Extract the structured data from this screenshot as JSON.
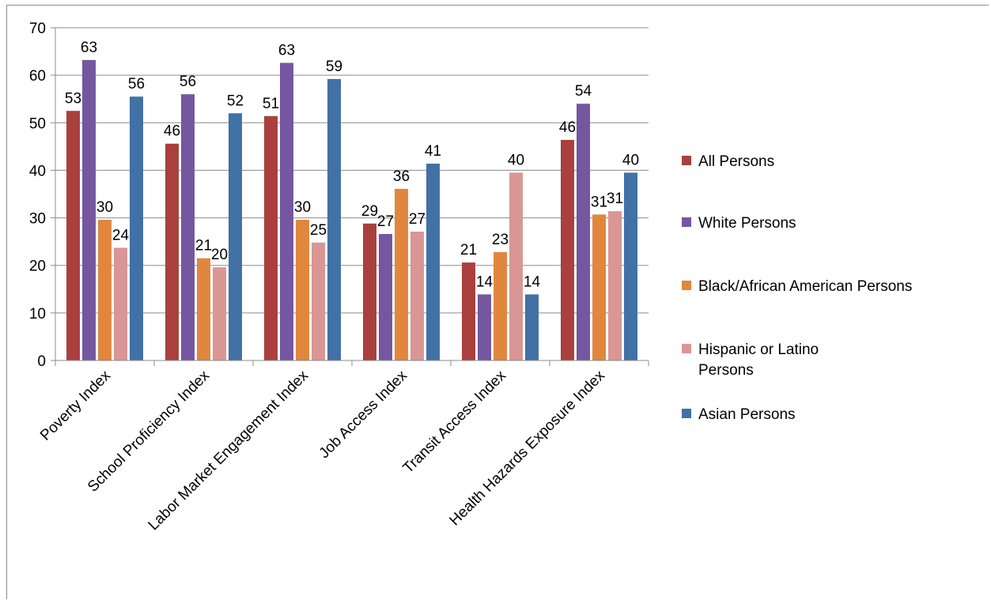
{
  "chart_data": {
    "type": "bar",
    "title": "",
    "xlabel": "",
    "ylabel": "",
    "ylim": [
      0,
      70
    ],
    "yticks": [
      0,
      10,
      20,
      30,
      40,
      50,
      60,
      70
    ],
    "grid": true,
    "legend": "right",
    "categories": [
      "Poverty Index",
      "School Proficiency Index",
      "Labor Market Engagement Index",
      "Job Access Index",
      "Transit Access Index",
      "Health Hazards Exposure Index"
    ],
    "series": [
      {
        "name": "All Persons",
        "color": "#a9403e",
        "values": [
          52.5,
          45.6,
          51.4,
          28.8,
          20.6,
          46.4
        ],
        "labels": [
          "53",
          "46",
          "51",
          "29",
          "21",
          "46"
        ]
      },
      {
        "name": "White Persons",
        "color": "#7457a0",
        "values": [
          63.2,
          56.0,
          62.6,
          26.6,
          13.9,
          54.0
        ],
        "labels": [
          "63",
          "56",
          "63",
          "27",
          "14",
          "54"
        ]
      },
      {
        "name": "Black/African American Persons",
        "color": "#e0873d",
        "values": [
          29.6,
          21.5,
          29.6,
          36.1,
          22.8,
          30.7
        ],
        "labels": [
          "30",
          "21",
          "30",
          "36",
          "23",
          "31"
        ]
      },
      {
        "name": "Hispanic or Latino Persons",
        "color": "#d99694",
        "values": [
          23.7,
          19.6,
          24.8,
          27.1,
          39.5,
          31.4
        ],
        "labels": [
          "24",
          "20",
          "25",
          "27",
          "40",
          "31"
        ]
      },
      {
        "name": "Asian Persons",
        "color": "#4271a6",
        "values": [
          55.5,
          52.0,
          59.2,
          41.4,
          13.9,
          39.5
        ],
        "labels": [
          "56",
          "52",
          "59",
          "41",
          "14",
          "40"
        ]
      }
    ],
    "legend_lines": [
      [
        "All Persons"
      ],
      [
        "White Persons"
      ],
      [
        "Black/African American Persons"
      ],
      [
        "Hispanic or Latino",
        "Persons"
      ],
      [
        "Asian Persons"
      ]
    ]
  }
}
